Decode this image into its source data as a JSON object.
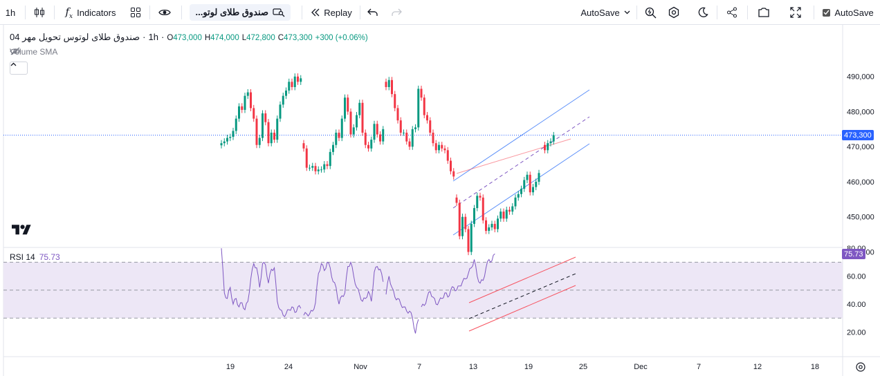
{
  "toolbar": {
    "interval": "1h",
    "indicators_label": "Indicators",
    "symbol": "صندوق طلای لوتو...",
    "replay_label": "Replay",
    "autosave_dropdown": "AutoSave",
    "autosave_checkbox": "AutoSave"
  },
  "legend": {
    "symbol_name": "صندوق طلای لوتوس تحویل مهر 04",
    "interval": "1h",
    "dot": "·",
    "open_label": "O",
    "open": "473,000",
    "high_label": "H",
    "high": "474,000",
    "low_label": "L",
    "low": "472,800",
    "close_label": "C",
    "close": "473,300",
    "change": "+300 (+0.06%)",
    "volume_indicator": "Volume SMA",
    "rsi_label": "RSI 14",
    "rsi_value": "75.73"
  },
  "colors": {
    "up": "#089981",
    "down": "#f23645",
    "rsi_line": "#7e57c2",
    "rsi_band": "#ede7f6",
    "channel": "#5b8ff9",
    "trend_red": "#f7525f",
    "last_price_bg": "#2962ff"
  },
  "price_axis": {
    "labels": [
      "490,000",
      "480,000",
      "470,000",
      "460,000",
      "450,000",
      "440,000"
    ],
    "last_price": "473,300"
  },
  "rsi_axis": {
    "labels": [
      "80.00",
      "60.00",
      "40.00",
      "20.00"
    ],
    "last_value": "75.73"
  },
  "time_axis": {
    "labels": [
      "19",
      "24",
      "Nov",
      "7",
      "13",
      "19",
      "25",
      "Dec",
      "7",
      "12",
      "18"
    ]
  },
  "chart_data": [
    {
      "type": "candlestick",
      "title": "صندوق طلای لوتوس تحویل مهر 04",
      "interval": "1h",
      "ylim": [
        436000,
        493000
      ],
      "last_close": 473300,
      "segments": [
        {
          "start_x": 0,
          "points": [
            471000,
            471500,
            472500,
            472800,
            474500,
            478000,
            481500,
            480500,
            484500,
            485500,
            481000,
            478000,
            470500,
            472500,
            479500,
            477000,
            471000,
            474000,
            472000,
            478000,
            482000,
            484500,
            486000,
            488500,
            487000,
            490000,
            488500,
            489500
          ]
        },
        {
          "start_x": 28,
          "points": [
            469500,
            464000,
            464000,
            464500,
            463000,
            463500,
            463500,
            465000,
            464500,
            468500,
            470500,
            474000,
            472500,
            478000,
            484000,
            480000,
            473500,
            475500,
            479000,
            482500,
            474000,
            470500,
            469500,
            472000,
            476500,
            473500,
            471500,
            475000
          ]
        },
        {
          "start_x": 56,
          "points": [
            487000,
            489000,
            485000,
            481000,
            477500,
            474000,
            474000,
            471500,
            470000,
            475000,
            475500,
            486500,
            484000,
            479000,
            477500,
            474000,
            471000,
            469000,
            470500,
            469500,
            469000,
            466000,
            463000,
            461500
          ]
        },
        {
          "start_x": 80,
          "points": [
            454000,
            444500,
            450000,
            446500,
            440000,
            448000,
            452500,
            456000,
            455500,
            449000,
            446000,
            447000,
            448000,
            446500,
            449500,
            451500,
            449500,
            452000,
            451500,
            453000,
            455500,
            456500,
            458000,
            460500,
            462000,
            457000,
            458500,
            460000,
            462500
          ]
        },
        {
          "start_x": 110,
          "points": [
            469000,
            471000,
            471500,
            473300
          ]
        }
      ]
    },
    {
      "type": "line",
      "title": "RSI 14",
      "ylim": [
        13,
        83
      ],
      "bands": [
        30,
        50,
        70
      ],
      "last_value": 75.73,
      "segments": [
        {
          "start_x": 0,
          "points": [
            80,
            48,
            44,
            52,
            40,
            44,
            38,
            41,
            36,
            42,
            58,
            69,
            66,
            52,
            69,
            68,
            55,
            65,
            66,
            42,
            36,
            32,
            33,
            36,
            38,
            34,
            38,
            37
          ]
        },
        {
          "start_x": 28,
          "points": [
            32,
            33,
            33,
            35,
            41,
            62,
            69,
            64,
            70,
            66,
            56,
            52,
            40,
            46,
            48,
            67,
            70,
            60,
            52,
            47,
            42,
            44,
            49,
            42,
            63,
            67,
            65,
            56
          ]
        },
        {
          "start_x": 56,
          "points": [
            47,
            60,
            52,
            45,
            44,
            40,
            38,
            35,
            35,
            30,
            19,
            29
          ]
        },
        {
          "start_x": 68,
          "points": [
            38,
            39,
            45,
            49,
            45,
            40,
            42,
            44,
            48,
            45,
            50,
            52,
            50,
            53,
            56,
            58,
            62,
            66,
            72,
            60,
            55,
            57,
            66,
            72,
            71,
            76
          ]
        }
      ]
    }
  ]
}
